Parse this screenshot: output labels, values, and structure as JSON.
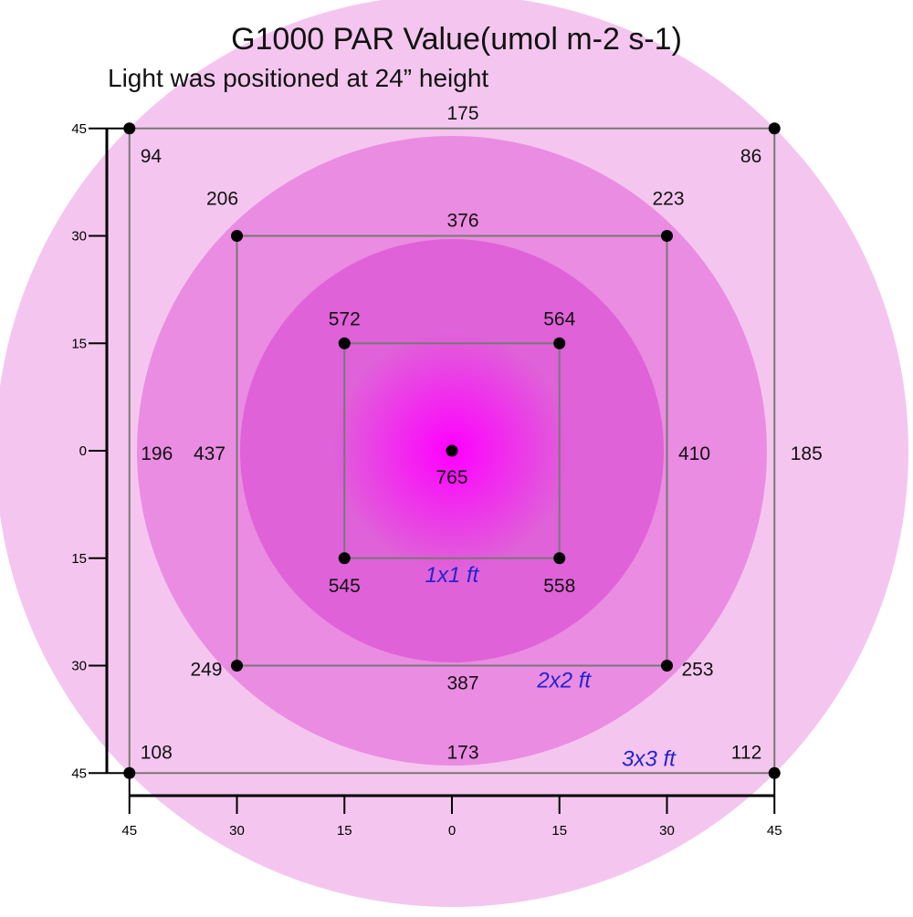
{
  "title": "G1000 PAR Value(umol m-2 s-1)",
  "subtitle": "Light was positioned at 24”    height",
  "colors": {
    "outer": "#f4c6ef",
    "middle": "#ea8ce1",
    "inner": "#df62d8",
    "center": "#ff00ff",
    "frame": "#777777",
    "zone_label": "#2424d0"
  },
  "chart_data": {
    "type": "heatmap",
    "title": "G1000 PAR Value(umol m-2 s-1)",
    "subtitle": "Light was positioned at 24”    height",
    "xlim": [
      -45,
      45
    ],
    "ylim": [
      -45,
      45
    ],
    "x_ticks": [
      {
        "value": -45,
        "label": "45"
      },
      {
        "value": -30,
        "label": "30"
      },
      {
        "value": -15,
        "label": "15"
      },
      {
        "value": 0,
        "label": "0"
      },
      {
        "value": 15,
        "label": "15"
      },
      {
        "value": 30,
        "label": "30"
      },
      {
        "value": 45,
        "label": "45"
      }
    ],
    "y_ticks": [
      {
        "value": 45,
        "label": "45"
      },
      {
        "value": 30,
        "label": "30"
      },
      {
        "value": 15,
        "label": "15"
      },
      {
        "value": 0,
        "label": "0"
      },
      {
        "value": -15,
        "label": "15"
      },
      {
        "value": -30,
        "label": "30"
      },
      {
        "value": -45,
        "label": "45"
      }
    ],
    "zones": [
      {
        "name": "1x1 ft",
        "half": 15
      },
      {
        "name": "2x2 ft",
        "half": 30
      },
      {
        "name": "3x3 ft",
        "half": 45
      }
    ],
    "corner_points": [
      {
        "x": 0,
        "y": 0,
        "value": "765"
      },
      {
        "x": -15,
        "y": 15,
        "value": "572"
      },
      {
        "x": 15,
        "y": 15,
        "value": "564"
      },
      {
        "x": -15,
        "y": -15,
        "value": "545"
      },
      {
        "x": 15,
        "y": -15,
        "value": "558"
      },
      {
        "x": -30,
        "y": 30,
        "value": "206"
      },
      {
        "x": 30,
        "y": 30,
        "value": "223"
      },
      {
        "x": -30,
        "y": -30,
        "value": "249"
      },
      {
        "x": 30,
        "y": -30,
        "value": "253"
      },
      {
        "x": -45,
        "y": 45,
        "value": "94"
      },
      {
        "x": 45,
        "y": 45,
        "value": "86"
      },
      {
        "x": -45,
        "y": -45,
        "value": "108"
      },
      {
        "x": 45,
        "y": -45,
        "value": "112"
      }
    ],
    "edge_values": [
      {
        "x": 0,
        "y": 30,
        "value": "376"
      },
      {
        "x": 0,
        "y": -30,
        "value": "387"
      },
      {
        "x": -30,
        "y": 0,
        "value": "437"
      },
      {
        "x": 30,
        "y": 0,
        "value": "410"
      },
      {
        "x": 0,
        "y": 45,
        "value": "175"
      },
      {
        "x": 0,
        "y": -45,
        "value": "173"
      },
      {
        "x": -45,
        "y": 0,
        "value": "196"
      },
      {
        "x": 45,
        "y": 0,
        "value": "185"
      }
    ]
  }
}
